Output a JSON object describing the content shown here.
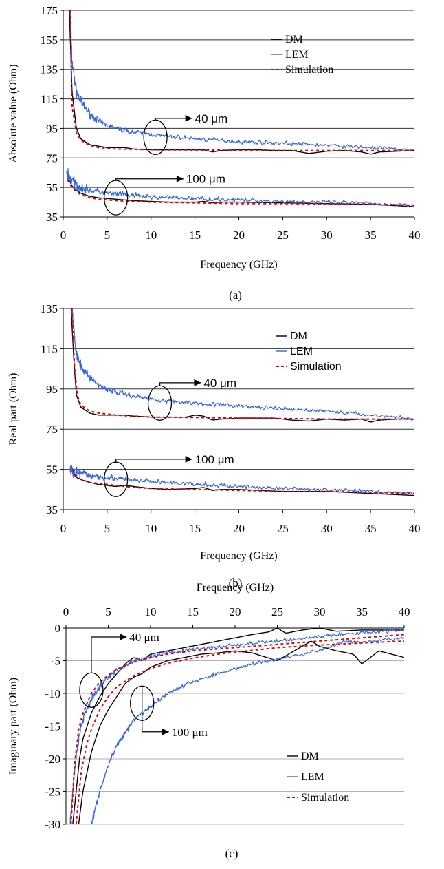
{
  "colors": {
    "dm": "#000000",
    "lem": "#3366e6",
    "simulation": "#e60000",
    "grid": "#333333",
    "light_grid": "#b0b0b0"
  },
  "chart_data": [
    {
      "panel": "a",
      "type": "line",
      "caption": "(a)",
      "xlabel": "Frequency (GHz)",
      "ylabel": "Absolute value (Ohm)",
      "xlim": [
        0,
        40
      ],
      "ylim": [
        35,
        175
      ],
      "x_ticks": [
        "0",
        "5",
        "10",
        "15",
        "20",
        "25",
        "30",
        "35",
        "40"
      ],
      "y_ticks": [
        "35",
        "55",
        "75",
        "95",
        "115",
        "135",
        "155",
        "175"
      ],
      "grid": "horizontal",
      "legend": {
        "position": "top-right",
        "entries": [
          "DM",
          "LEM",
          "Simulation"
        ]
      },
      "annotations": [
        {
          "text": "40 μm",
          "x": 10.5,
          "y": 89,
          "text_at": [
            15,
            99
          ]
        },
        {
          "text": "100 μm",
          "x": 6,
          "y": 48,
          "text_at": [
            14,
            58
          ]
        }
      ],
      "series": [
        {
          "name": "DM",
          "group": "40 μm",
          "x": [
            0.7,
            1,
            1.5,
            2,
            3,
            4,
            5,
            6,
            7,
            8,
            10,
            12,
            14,
            16,
            17,
            18,
            20,
            22,
            24,
            26,
            28,
            30,
            32,
            34,
            35,
            36,
            38,
            40
          ],
          "y": [
            175,
            120,
            95,
            88,
            84,
            83,
            82,
            82,
            82,
            81,
            80.5,
            80.5,
            80.5,
            80.5,
            79,
            80,
            80.5,
            80.5,
            80,
            80,
            78,
            79.5,
            80,
            79,
            77.5,
            79,
            79.5,
            80
          ]
        },
        {
          "name": "LEM",
          "group": "40 μm",
          "x": [
            0.8,
            1,
            1.5,
            2,
            3,
            4,
            5,
            6,
            8,
            10,
            12,
            15,
            20,
            25,
            30,
            35,
            38,
            40
          ],
          "y": [
            175,
            140,
            120,
            113,
            105,
            100,
            97,
            95,
            92.5,
            91,
            89.5,
            88,
            86,
            85,
            83.5,
            82,
            81,
            80
          ]
        },
        {
          "name": "Simulation",
          "group": "40 μm",
          "x": [
            0.8,
            1,
            1.5,
            2,
            3,
            4,
            5,
            6,
            8,
            10,
            15,
            20,
            25,
            30,
            35,
            40
          ],
          "y": [
            175,
            110,
            92,
            87,
            83.5,
            82,
            81.5,
            81,
            80.8,
            80.5,
            80.3,
            80.2,
            80,
            80,
            80,
            80
          ]
        },
        {
          "name": "DM",
          "group": "100 μm",
          "x": [
            0.5,
            1,
            1.5,
            2,
            3,
            4,
            5,
            6,
            7,
            8,
            10,
            12,
            15,
            16,
            17,
            18,
            20,
            25,
            30,
            35,
            40
          ],
          "y": [
            62,
            56,
            53,
            51,
            49,
            48,
            47.5,
            47,
            46.5,
            46,
            45.5,
            45,
            45,
            45.5,
            44.5,
            45,
            45,
            44.5,
            44,
            43.5,
            42
          ]
        },
        {
          "name": "LEM",
          "group": "100 μm",
          "x": [
            0.4,
            1,
            1.5,
            2,
            3,
            4,
            5,
            6,
            8,
            10,
            15,
            20,
            25,
            30,
            35,
            40
          ],
          "y": [
            64,
            60,
            57,
            55,
            53,
            52,
            51,
            50.5,
            49.5,
            48.5,
            47.5,
            46.5,
            45.5,
            45,
            44,
            43
          ]
        },
        {
          "name": "Simulation",
          "group": "100 μm",
          "x": [
            0.5,
            1,
            1.5,
            2,
            3,
            4,
            5,
            6,
            8,
            10,
            15,
            20,
            25,
            30,
            35,
            40
          ],
          "y": [
            60,
            55,
            52,
            50,
            48,
            47,
            46.5,
            46,
            45.5,
            45,
            44.5,
            44,
            44,
            43.8,
            43.5,
            43
          ]
        }
      ]
    },
    {
      "panel": "b",
      "type": "line",
      "caption": "(b)",
      "xlabel": "Frequency (GHz)",
      "ylabel": "Real part (Ohm)",
      "xlim": [
        0,
        40
      ],
      "ylim": [
        35,
        135
      ],
      "x_ticks": [
        "0",
        "5",
        "10",
        "15",
        "20",
        "25",
        "30",
        "35",
        "40"
      ],
      "y_ticks": [
        "35",
        "55",
        "75",
        "95",
        "115",
        "135"
      ],
      "grid": "horizontal",
      "legend": {
        "position": "top-right",
        "entries": [
          "DM",
          "LEM",
          "Simulation"
        ]
      },
      "annotations": [
        {
          "text": "40 μm",
          "x": 11,
          "y": 88,
          "text_at": [
            16,
            96
          ]
        },
        {
          "text": "100 μm",
          "x": 6,
          "y": 50,
          "text_at": [
            15,
            58
          ]
        }
      ],
      "series": [
        {
          "name": "DM",
          "group": "40 μm",
          "x": [
            0.9,
            1.2,
            1.5,
            2,
            3,
            4,
            5,
            6,
            7,
            8,
            10,
            12,
            14,
            15,
            16,
            17,
            18,
            20,
            22,
            24,
            26,
            28,
            30,
            32,
            34,
            35,
            36,
            38,
            40
          ],
          "y": [
            135,
            110,
            92,
            86,
            83,
            82,
            82,
            82,
            82,
            81.5,
            81,
            81,
            81,
            82,
            81.5,
            79.5,
            80,
            80.5,
            80.5,
            80.5,
            79.5,
            79,
            80,
            79.5,
            80,
            78.5,
            79.5,
            80,
            80
          ]
        },
        {
          "name": "LEM",
          "group": "40 μm",
          "x": [
            1,
            1.3,
            1.5,
            2,
            3,
            4,
            5,
            6,
            8,
            10,
            12,
            15,
            20,
            25,
            30,
            35,
            38,
            40
          ],
          "y": [
            135,
            120,
            112,
            106,
            101,
            97,
            95,
            93.5,
            91.5,
            90,
            89,
            88,
            86.5,
            85,
            84,
            82,
            81,
            80
          ]
        },
        {
          "name": "Simulation",
          "group": "40 μm",
          "x": [
            1,
            1.3,
            1.6,
            2,
            3,
            4,
            5,
            6,
            8,
            10,
            15,
            20,
            25,
            30,
            35,
            40
          ],
          "y": [
            135,
            105,
            92,
            87,
            84,
            83,
            82.5,
            82,
            81.5,
            81,
            80.8,
            80.5,
            80.3,
            80,
            80,
            80
          ]
        },
        {
          "name": "DM",
          "group": "100 μm",
          "x": [
            1,
            1.5,
            2,
            3,
            4,
            5,
            6,
            7,
            8,
            10,
            12,
            15,
            16,
            17,
            18,
            20,
            25,
            30,
            35,
            40
          ],
          "y": [
            54,
            51,
            50,
            48.5,
            47.5,
            47,
            46.5,
            47,
            46.5,
            45.5,
            45,
            45.5,
            46,
            44.5,
            45,
            45,
            44,
            44,
            43,
            42
          ]
        },
        {
          "name": "LEM",
          "group": "100 μm",
          "x": [
            0.8,
            1,
            1.5,
            2,
            3,
            4,
            5,
            6,
            8,
            10,
            15,
            20,
            25,
            30,
            35,
            40
          ],
          "y": [
            55,
            54,
            53.5,
            53,
            52,
            51.5,
            51,
            50.5,
            49.5,
            49,
            47.5,
            46.5,
            45.5,
            45,
            44,
            43
          ]
        },
        {
          "name": "Simulation",
          "group": "100 μm",
          "x": [
            1,
            1.5,
            2,
            3,
            4,
            5,
            6,
            8,
            10,
            15,
            20,
            25,
            30,
            35,
            40
          ],
          "y": [
            55,
            52,
            50,
            48.5,
            48,
            47.5,
            47,
            46,
            45.5,
            45,
            44.5,
            44,
            44,
            43.5,
            43
          ]
        }
      ]
    },
    {
      "panel": "c",
      "type": "line",
      "caption": "(c)",
      "xlabel": "Frequency (GHz)",
      "ylabel": "Imaginary part (Ohm)",
      "xlim": [
        0,
        40
      ],
      "ylim": [
        -30,
        0
      ],
      "x_axis_position": "top",
      "x_ticks": [
        "0",
        "5",
        "10",
        "15",
        "20",
        "25",
        "30",
        "35",
        "40"
      ],
      "y_ticks": [
        "0",
        "-5",
        "-10",
        "-15",
        "-20",
        "-25",
        "-30"
      ],
      "grid": "horizontal",
      "legend": {
        "position": "bottom-right",
        "entries": [
          "DM",
          "LEM",
          "Simulation"
        ]
      },
      "annotations": [
        {
          "text": "40 μm",
          "x": 3,
          "y": -9.5,
          "text_at": [
            7.5,
            -2
          ]
        },
        {
          "text": "100 μm",
          "x": 9,
          "y": -11.5,
          "text_at": [
            12.5,
            -16.5
          ]
        }
      ],
      "series": [
        {
          "name": "DM",
          "group": "40 μm",
          "x": [
            0.8,
            1.2,
            1.6,
            2,
            3,
            4,
            5,
            6,
            7,
            8,
            9,
            10,
            12,
            14,
            16,
            18,
            20,
            22,
            24,
            25,
            26,
            28,
            30,
            32,
            35,
            40
          ],
          "y": [
            -30,
            -25,
            -20,
            -17,
            -13,
            -10.5,
            -8.5,
            -7,
            -5.5,
            -4.5,
            -5,
            -4,
            -3.5,
            -3,
            -2.5,
            -2,
            -1.5,
            -1,
            -0.6,
            0,
            -0.8,
            -0.3,
            0,
            -0.5,
            -0.3,
            -0.3
          ]
        },
        {
          "name": "LEM",
          "group": "40 μm",
          "x": [
            0.5,
            1,
            1.5,
            2,
            3,
            4,
            5,
            6,
            8,
            10,
            12,
            15,
            20,
            25,
            30,
            35,
            40
          ],
          "y": [
            -30,
            -22,
            -17,
            -14,
            -11,
            -9,
            -7.5,
            -6.5,
            -5,
            -4.3,
            -3.8,
            -3.3,
            -2.6,
            -2,
            -1.3,
            -0.7,
            -0.3
          ]
        },
        {
          "name": "Simulation",
          "group": "40 μm",
          "x": [
            0.6,
            1,
            1.5,
            2,
            3,
            4,
            5,
            6,
            8,
            10,
            12,
            15,
            20,
            25,
            30,
            35,
            40
          ],
          "y": [
            -30,
            -21,
            -15.5,
            -13,
            -10,
            -8.3,
            -7.2,
            -6.3,
            -5.2,
            -4.5,
            -4,
            -3.5,
            -3,
            -2.5,
            -2,
            -1.5,
            -1
          ]
        },
        {
          "name": "DM",
          "group": "100 μm",
          "x": [
            1.5,
            2,
            3,
            4,
            5,
            6,
            7,
            8,
            9,
            10,
            12,
            14,
            16,
            18,
            20,
            22,
            25,
            27,
            29,
            30,
            32,
            34,
            35,
            37,
            40
          ],
          "y": [
            -30,
            -25,
            -19,
            -15,
            -12.5,
            -10.5,
            -8.5,
            -7.5,
            -7,
            -6,
            -5,
            -4.5,
            -4,
            -3.8,
            -3.5,
            -3.8,
            -5,
            -3.5,
            -2,
            -2.8,
            -3.5,
            -4,
            -5.5,
            -3.5,
            -4.5
          ]
        },
        {
          "name": "LEM",
          "group": "100 μm",
          "x": [
            3,
            4,
            5,
            6,
            7,
            8,
            10,
            12,
            15,
            18,
            20,
            22,
            25,
            28,
            30,
            33,
            35,
            38,
            40
          ],
          "y": [
            -30,
            -25,
            -21,
            -18,
            -16,
            -14,
            -12,
            -10,
            -8.2,
            -7,
            -6.2,
            -5.5,
            -4.8,
            -4,
            -3.4,
            -2,
            -2.3,
            -1.8,
            -1.5
          ]
        },
        {
          "name": "Simulation",
          "group": "100 μm",
          "x": [
            1.2,
            1.8,
            2.5,
            3,
            4,
            5,
            6,
            8,
            10,
            12,
            15,
            18,
            20,
            25,
            30,
            35,
            40
          ],
          "y": [
            -30,
            -22,
            -17.5,
            -15.5,
            -12.5,
            -10.5,
            -9,
            -7.3,
            -6.2,
            -5.4,
            -4.6,
            -4,
            -3.7,
            -3,
            -2.6,
            -2.3,
            -2
          ]
        }
      ]
    }
  ]
}
